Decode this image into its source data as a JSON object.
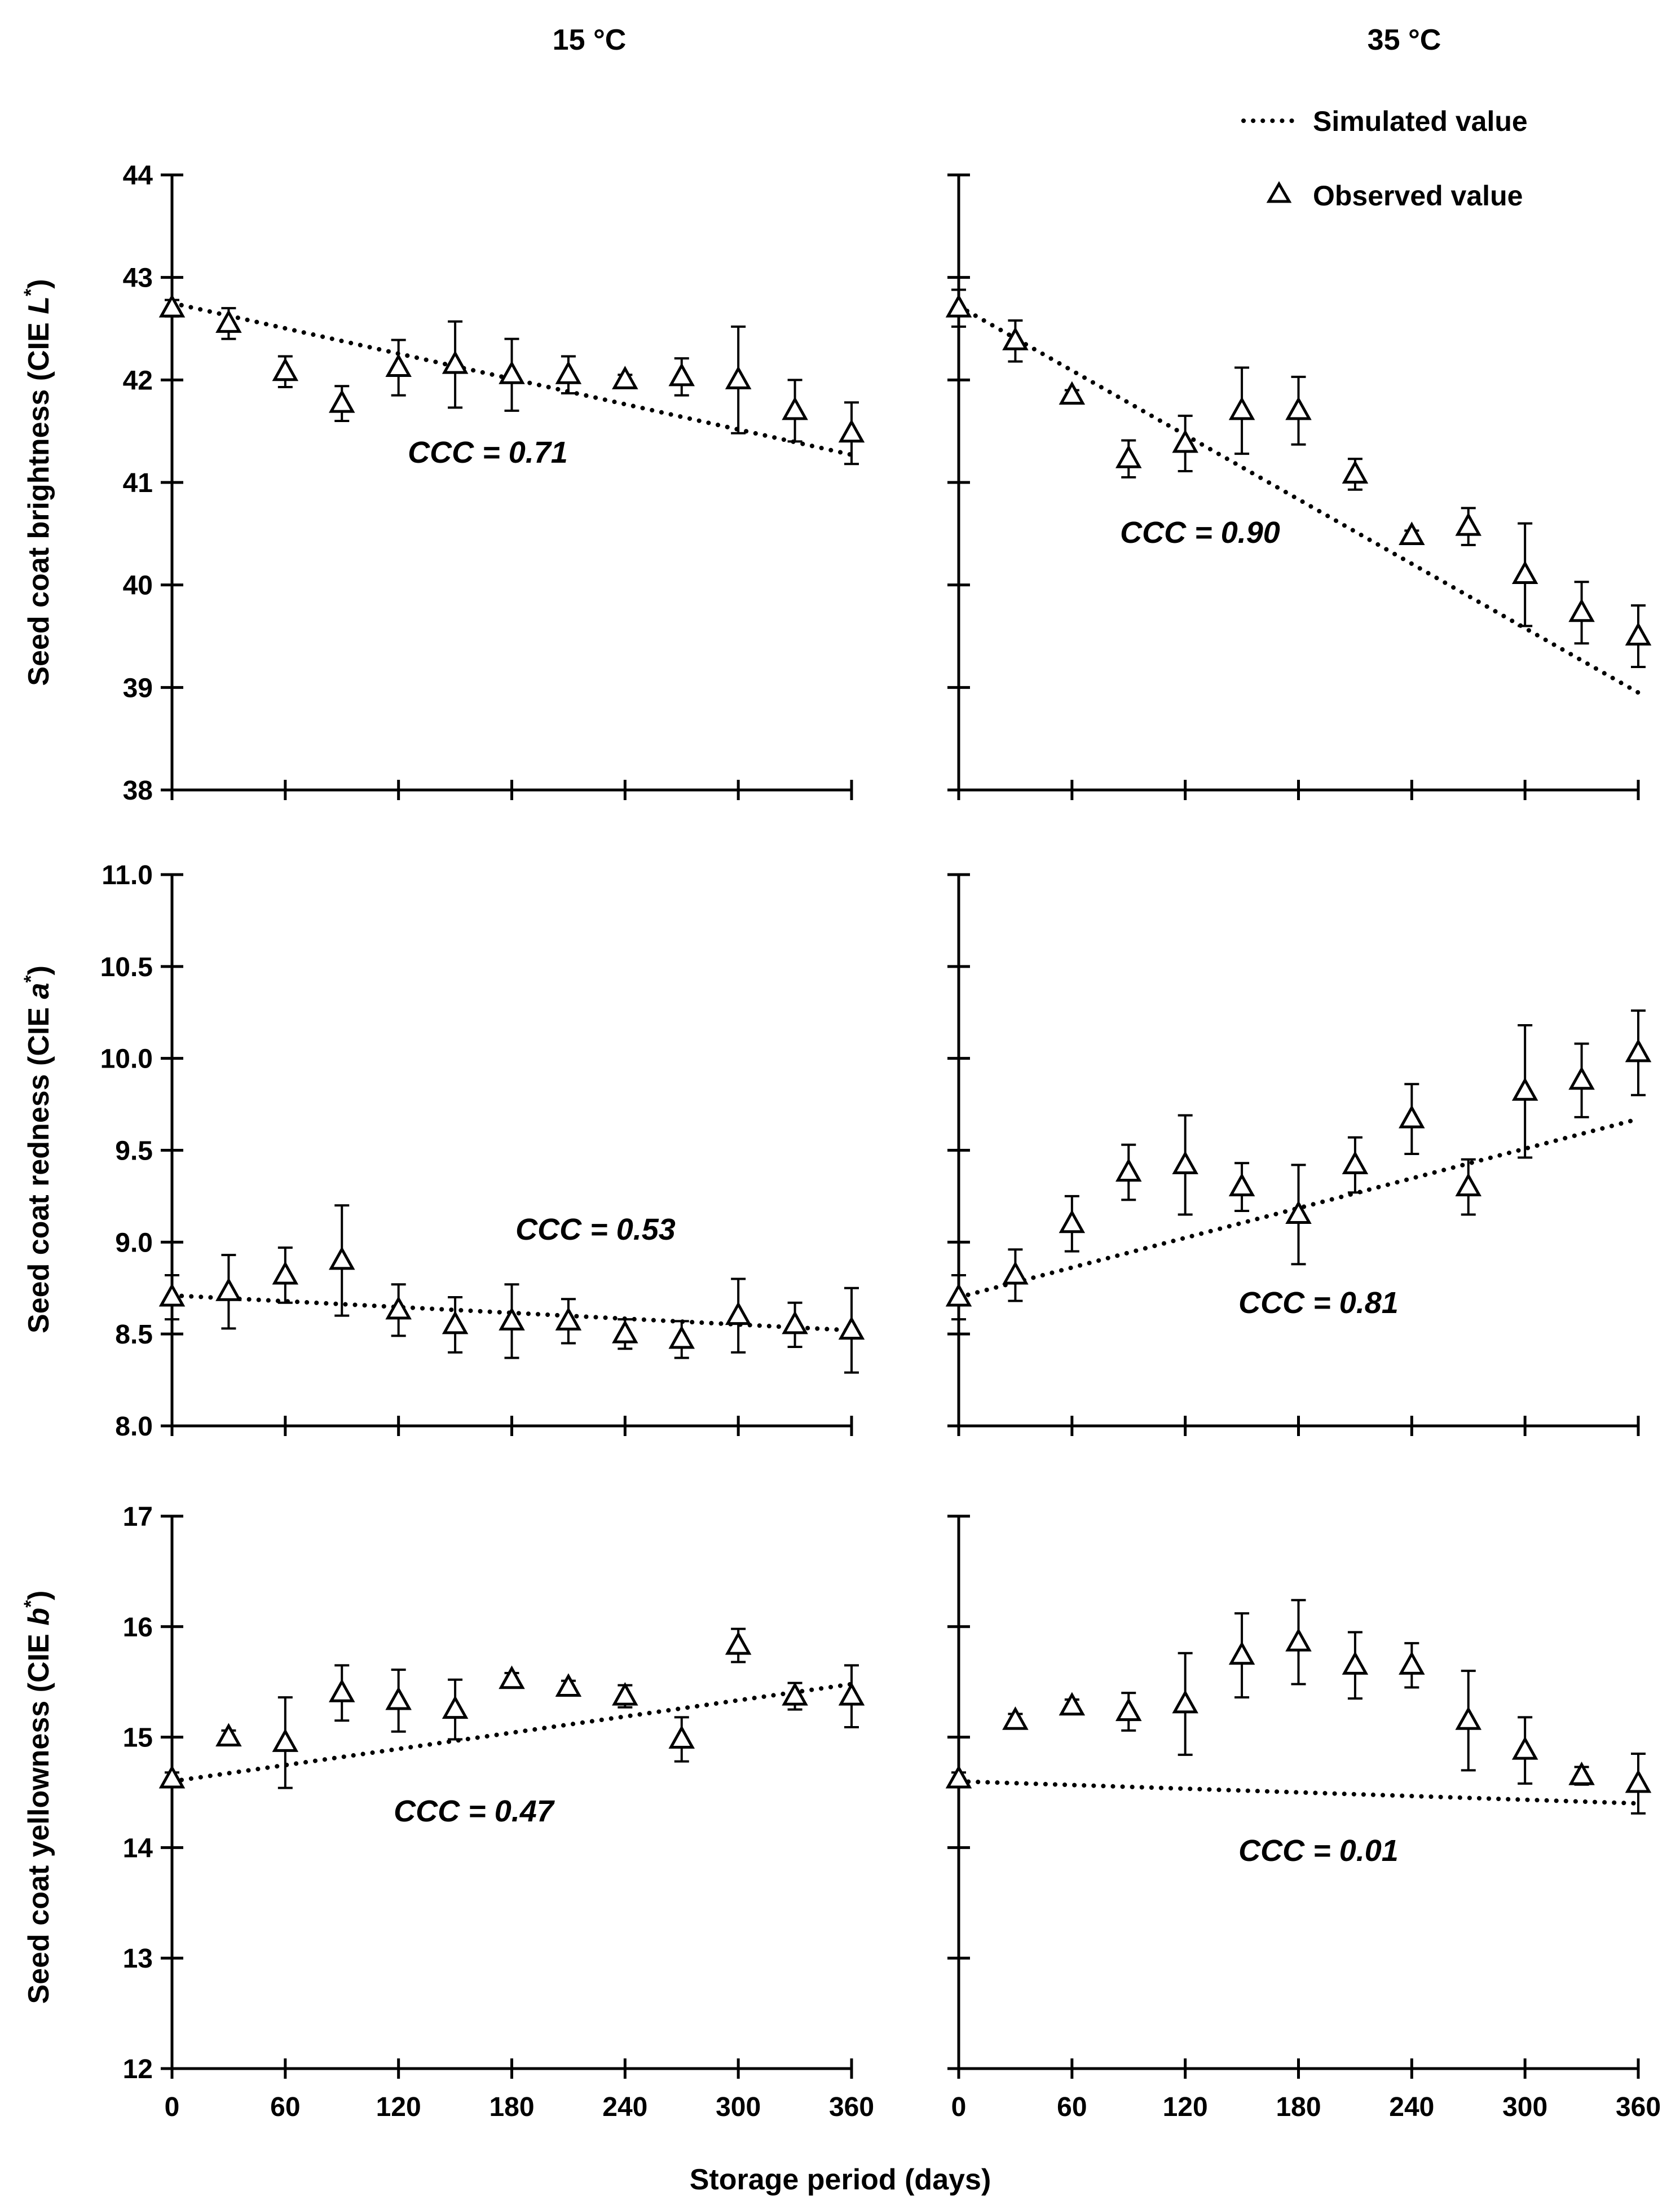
{
  "figure": {
    "xlabel": "Storage period (days)",
    "legend": {
      "simulated": "Simulated value",
      "observed": "Observed value",
      "position": "top-right"
    }
  },
  "colors": {
    "ink": "#000000",
    "background": "#ffffff"
  },
  "chart_data": [
    {
      "id": "L-15C",
      "type": "scatter",
      "title": "15 °C",
      "ylabel_parts": [
        "Seed coat brightness (CIE ",
        "L",
        "*",
        ")"
      ],
      "ylim": [
        38,
        44
      ],
      "yticks": [
        "38",
        "39",
        "40",
        "41",
        "42",
        "43",
        "44"
      ],
      "xlim": [
        0,
        360
      ],
      "xticks": [
        "0",
        "60",
        "120",
        "180",
        "240",
        "300",
        "360"
      ],
      "ccc": "CCC = 0.71",
      "observed": {
        "x": [
          0,
          30,
          60,
          90,
          120,
          150,
          180,
          210,
          240,
          270,
          300,
          330,
          360
        ],
        "y": [
          42.7,
          42.55,
          42.08,
          41.77,
          42.12,
          42.15,
          42.05,
          42.05,
          42.0,
          42.03,
          42.0,
          41.7,
          41.48
        ],
        "err": [
          0.08,
          0.15,
          0.15,
          0.17,
          0.27,
          0.42,
          0.35,
          0.18,
          0.05,
          0.18,
          0.52,
          0.3,
          0.3
        ]
      },
      "simulated": {
        "x": [
          0,
          360
        ],
        "y": [
          42.75,
          41.27
        ]
      }
    },
    {
      "id": "L-35C",
      "type": "scatter",
      "title": "35 °C",
      "ylim": [
        38,
        44
      ],
      "xlim": [
        0,
        360
      ],
      "xticks": [
        "0",
        "60",
        "120",
        "180",
        "240",
        "300",
        "360"
      ],
      "ccc": "CCC = 0.90",
      "observed": {
        "x": [
          0,
          30,
          60,
          90,
          120,
          150,
          180,
          210,
          240,
          270,
          300,
          330,
          360
        ],
        "y": [
          42.7,
          42.38,
          41.85,
          41.23,
          41.38,
          41.7,
          41.7,
          41.08,
          40.48,
          40.57,
          40.1,
          39.73,
          39.5
        ],
        "err": [
          0.18,
          0.2,
          0.05,
          0.18,
          0.27,
          0.42,
          0.33,
          0.15,
          0.05,
          0.18,
          0.5,
          0.3,
          0.3
        ]
      },
      "simulated": {
        "x": [
          0,
          360
        ],
        "y": [
          42.72,
          38.95
        ]
      }
    },
    {
      "id": "a-15C",
      "type": "scatter",
      "ylabel_parts": [
        "Seed coat redness (CIE ",
        "a",
        "*",
        ")"
      ],
      "ylim": [
        8.0,
        11.0
      ],
      "yticks": [
        "8.0",
        "8.5",
        "9.0",
        "9.5",
        "10.0",
        "10.5",
        "11.0"
      ],
      "xlim": [
        0,
        360
      ],
      "xticks": [
        "0",
        "60",
        "120",
        "180",
        "240",
        "300",
        "360"
      ],
      "ccc": "CCC = 0.53",
      "observed": {
        "x": [
          0,
          30,
          60,
          90,
          120,
          150,
          180,
          210,
          240,
          270,
          300,
          330,
          360
        ],
        "y": [
          8.7,
          8.73,
          8.82,
          8.9,
          8.63,
          8.55,
          8.57,
          8.57,
          8.5,
          8.47,
          8.6,
          8.55,
          8.52
        ],
        "err": [
          0.12,
          0.2,
          0.15,
          0.3,
          0.14,
          0.15,
          0.2,
          0.12,
          0.08,
          0.1,
          0.2,
          0.12,
          0.23
        ]
      },
      "simulated": {
        "x": [
          0,
          360
        ],
        "y": [
          8.71,
          8.52
        ]
      }
    },
    {
      "id": "a-35C",
      "type": "scatter",
      "ylim": [
        8.0,
        11.0
      ],
      "xlim": [
        0,
        360
      ],
      "xticks": [
        "0",
        "60",
        "120",
        "180",
        "240",
        "300",
        "360"
      ],
      "ccc": "CCC = 0.81",
      "observed": {
        "x": [
          0,
          30,
          60,
          90,
          120,
          150,
          180,
          210,
          240,
          270,
          300,
          330,
          360
        ],
        "y": [
          8.7,
          8.82,
          9.1,
          9.38,
          9.42,
          9.3,
          9.15,
          9.42,
          9.67,
          9.3,
          9.82,
          9.88,
          10.03
        ],
        "err": [
          0.12,
          0.14,
          0.15,
          0.15,
          0.27,
          0.13,
          0.27,
          0.15,
          0.19,
          0.15,
          0.36,
          0.2,
          0.23
        ]
      },
      "simulated": {
        "x": [
          0,
          360
        ],
        "y": [
          8.7,
          9.67
        ]
      }
    },
    {
      "id": "b-15C",
      "type": "scatter",
      "ylabel_parts": [
        "Seed coat yellowness (CIE ",
        "b",
        "*",
        ")"
      ],
      "ylim": [
        12,
        17
      ],
      "yticks": [
        "12",
        "13",
        "14",
        "15",
        "16",
        "17"
      ],
      "xlim": [
        0,
        360
      ],
      "xticks": [
        "0",
        "60",
        "120",
        "180",
        "240",
        "300",
        "360"
      ],
      "ccc": "CCC = 0.47",
      "observed": {
        "x": [
          0,
          30,
          60,
          90,
          120,
          150,
          180,
          210,
          240,
          270,
          300,
          330,
          360
        ],
        "y": [
          14.62,
          15.0,
          14.95,
          15.4,
          15.33,
          15.25,
          15.52,
          15.45,
          15.37,
          14.98,
          15.83,
          15.37,
          15.37
        ],
        "err": [
          0.06,
          0.06,
          0.41,
          0.25,
          0.28,
          0.27,
          0.06,
          0.06,
          0.1,
          0.2,
          0.15,
          0.12,
          0.28
        ]
      },
      "simulated": {
        "x": [
          0,
          360
        ],
        "y": [
          14.6,
          15.48
        ]
      }
    },
    {
      "id": "b-35C",
      "type": "scatter",
      "ylim": [
        12,
        17
      ],
      "xlim": [
        0,
        360
      ],
      "xticks": [
        "0",
        "60",
        "120",
        "180",
        "240",
        "300",
        "360"
      ],
      "ccc": "CCC = 0.01",
      "observed": {
        "x": [
          0,
          30,
          60,
          90,
          120,
          150,
          180,
          210,
          240,
          270,
          300,
          330,
          360
        ],
        "y": [
          14.62,
          15.15,
          15.28,
          15.23,
          15.3,
          15.74,
          15.86,
          15.65,
          15.65,
          15.15,
          14.88,
          14.65,
          14.58
        ],
        "err": [
          0.06,
          0.06,
          0.06,
          0.17,
          0.46,
          0.38,
          0.38,
          0.3,
          0.2,
          0.45,
          0.3,
          0.08,
          0.27
        ]
      },
      "simulated": {
        "x": [
          0,
          360
        ],
        "y": [
          14.6,
          14.4
        ]
      }
    }
  ]
}
